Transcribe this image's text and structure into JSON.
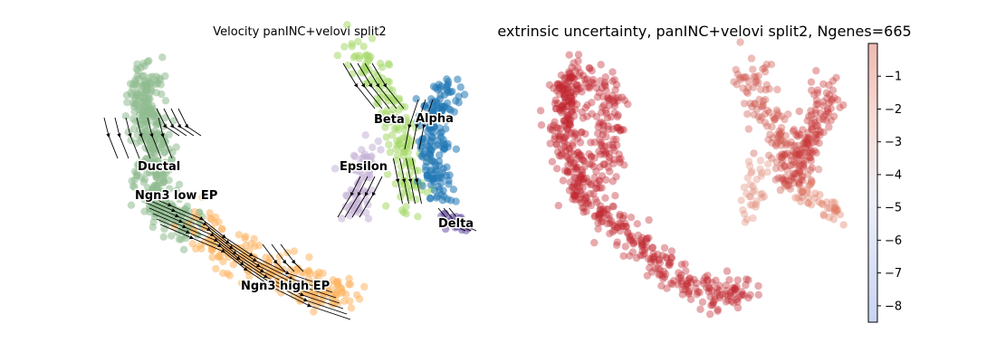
{
  "chart_data": [
    {
      "type": "scatter",
      "title": "Velocity panINC+velovi split2",
      "xlabel": "",
      "ylabel": "",
      "axes_visible": false,
      "grid": false,
      "legend": "none",
      "overlay": "velocity streamlines with arrowheads",
      "series": [
        {
          "name": "Ductal",
          "label": "Ductal",
          "color": "#8fbc8f"
        },
        {
          "name": "Ngn3 low EP",
          "label": "Ngn3 low EP",
          "color": "#8fbc8f"
        },
        {
          "name": "Ngn3 high EP",
          "label": "Ngn3 high EP",
          "color": "#fdb462"
        },
        {
          "name": "Epsilon",
          "label": "Epsilon",
          "color": "#c5b0d5"
        },
        {
          "name": "Beta",
          "label": "Beta",
          "color": "#a6d96a"
        },
        {
          "name": "Alpha",
          "label": "Alpha",
          "color": "#1f77b4"
        },
        {
          "name": "Delta",
          "label": "Delta",
          "color": "#6a51a3"
        }
      ]
    },
    {
      "type": "scatter",
      "title": "extrinsic uncertainty, panINC+velovi split2, Ngenes=665",
      "xlabel": "",
      "ylabel": "",
      "axes_visible": false,
      "grid": false,
      "colorbar": {
        "ticks": [
          "−1",
          "−2",
          "−3",
          "−4",
          "−5",
          "−6",
          "−7",
          "−8"
        ],
        "range": [
          -8.5,
          0
        ],
        "colormap": "coolwarm",
        "orientation": "vertical",
        "position": "right"
      }
    }
  ]
}
